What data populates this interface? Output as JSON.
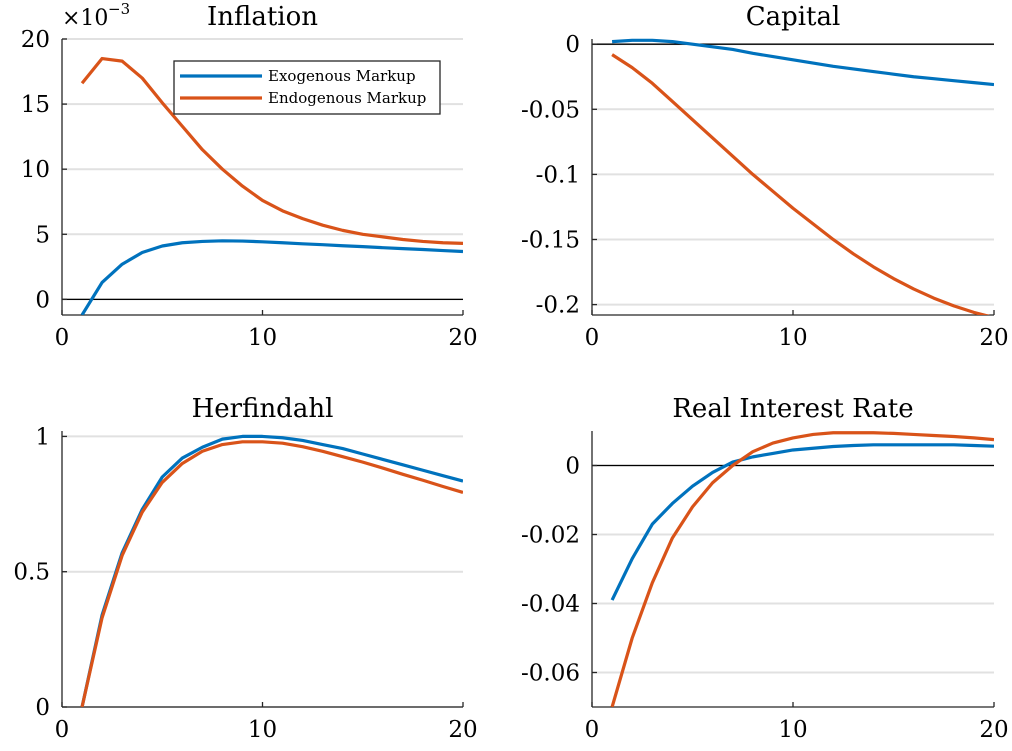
{
  "chart_data": [
    {
      "type": "line",
      "title": "Inflation",
      "xlabel": "",
      "ylabel": "",
      "exponent_label": "×10",
      "exponent_power": "−3",
      "xlim": [
        1,
        20
      ],
      "ylim": [
        -1.2,
        20
      ],
      "xticks": [
        0,
        10,
        20
      ],
      "yticks": [
        0,
        5,
        10,
        15,
        20
      ],
      "xtick_labels": [
        "0",
        "10",
        "20"
      ],
      "ytick_labels": [
        "0",
        "5",
        "10",
        "15",
        "20"
      ],
      "zero_line": true,
      "grid": "horizontal",
      "legend": "top-right",
      "x": [
        1,
        2,
        3,
        4,
        5,
        6,
        7,
        8,
        9,
        10,
        11,
        12,
        13,
        14,
        15,
        16,
        17,
        18,
        19,
        20
      ],
      "series": [
        {
          "name": "Exogenous Markup",
          "color": "#0072BD",
          "values": [
            -1.2,
            1.3,
            2.7,
            3.6,
            4.1,
            4.35,
            4.45,
            4.5,
            4.48,
            4.42,
            4.35,
            4.27,
            4.2,
            4.12,
            4.05,
            3.97,
            3.9,
            3.83,
            3.75,
            3.68
          ]
        },
        {
          "name": "Endogenous Markup",
          "color": "#D95319",
          "values": [
            16.6,
            18.5,
            18.3,
            17.0,
            15.1,
            13.3,
            11.5,
            10.0,
            8.7,
            7.6,
            6.8,
            6.2,
            5.7,
            5.3,
            5.0,
            4.8,
            4.6,
            4.45,
            4.35,
            4.3
          ]
        }
      ]
    },
    {
      "type": "line",
      "title": "Capital",
      "xlabel": "",
      "ylabel": "",
      "xlim": [
        1,
        20
      ],
      "ylim": [
        -0.208,
        0.004
      ],
      "xticks": [
        0,
        10,
        20
      ],
      "yticks": [
        0,
        -0.05,
        -0.1,
        -0.15,
        -0.2
      ],
      "xtick_labels": [
        "0",
        "10",
        "20"
      ],
      "ytick_labels": [
        "0",
        "-0.05",
        "-0.1",
        "-0.15",
        "-0.2"
      ],
      "zero_line": true,
      "grid": "horizontal",
      "x": [
        1,
        2,
        3,
        4,
        5,
        6,
        7,
        8,
        9,
        10,
        11,
        12,
        13,
        14,
        15,
        16,
        17,
        18,
        19,
        20
      ],
      "series": [
        {
          "name": "Exogenous Markup",
          "color": "#0072BD",
          "values": [
            0.002,
            0.003,
            0.003,
            0.002,
            0.0,
            -0.002,
            -0.004,
            -0.007,
            -0.0095,
            -0.012,
            -0.0145,
            -0.017,
            -0.019,
            -0.021,
            -0.023,
            -0.025,
            -0.0265,
            -0.028,
            -0.0295,
            -0.031
          ]
        },
        {
          "name": "Endogenous Markup",
          "color": "#D95319",
          "values": [
            -0.008,
            -0.018,
            -0.03,
            -0.044,
            -0.058,
            -0.072,
            -0.086,
            -0.1,
            -0.113,
            -0.126,
            -0.138,
            -0.15,
            -0.161,
            -0.171,
            -0.18,
            -0.188,
            -0.195,
            -0.201,
            -0.206,
            -0.21
          ]
        }
      ]
    },
    {
      "type": "line",
      "title": "Herfindahl",
      "xlabel": "",
      "ylabel": "",
      "xlim": [
        1,
        20
      ],
      "ylim": [
        0,
        1.02
      ],
      "xticks": [
        0,
        10,
        20
      ],
      "yticks": [
        0,
        0.5,
        1
      ],
      "xtick_labels": [
        "0",
        "10",
        "20"
      ],
      "ytick_labels": [
        "0",
        "0.5",
        "1"
      ],
      "zero_line": false,
      "grid": "horizontal",
      "x": [
        1,
        2,
        3,
        4,
        5,
        6,
        7,
        8,
        9,
        10,
        11,
        12,
        13,
        14,
        15,
        16,
        17,
        18,
        19,
        20
      ],
      "series": [
        {
          "name": "Exogenous Markup",
          "color": "#0072BD",
          "values": [
            0.0,
            0.34,
            0.57,
            0.73,
            0.85,
            0.92,
            0.96,
            0.99,
            1.0,
            1.0,
            0.995,
            0.985,
            0.97,
            0.955,
            0.935,
            0.915,
            0.895,
            0.875,
            0.855,
            0.835
          ]
        },
        {
          "name": "Endogenous Markup",
          "color": "#D95319",
          "values": [
            0.0,
            0.33,
            0.56,
            0.72,
            0.83,
            0.9,
            0.945,
            0.97,
            0.98,
            0.98,
            0.975,
            0.962,
            0.945,
            0.925,
            0.905,
            0.883,
            0.86,
            0.838,
            0.815,
            0.793
          ]
        }
      ]
    },
    {
      "type": "line",
      "title": "Real Interest Rate",
      "xlabel": "",
      "ylabel": "",
      "xlim": [
        1,
        20
      ],
      "ylim": [
        -0.07,
        0.01
      ],
      "xticks": [
        0,
        10,
        20
      ],
      "yticks": [
        0,
        -0.02,
        -0.04,
        -0.06
      ],
      "xtick_labels": [
        "0",
        "10",
        "20"
      ],
      "ytick_labels": [
        "0",
        "-0.02",
        "-0.04",
        "-0.06"
      ],
      "zero_line": true,
      "grid": "horizontal",
      "x": [
        1,
        2,
        3,
        4,
        5,
        6,
        7,
        8,
        9,
        10,
        11,
        12,
        13,
        14,
        15,
        16,
        17,
        18,
        19,
        20
      ],
      "series": [
        {
          "name": "Exogenous Markup",
          "color": "#0072BD",
          "values": [
            -0.039,
            -0.027,
            -0.017,
            -0.011,
            -0.006,
            -0.002,
            0.001,
            0.0025,
            0.0035,
            0.0045,
            0.005,
            0.0055,
            0.0058,
            0.006,
            0.006,
            0.006,
            0.006,
            0.006,
            0.0058,
            0.0056
          ]
        },
        {
          "name": "Endogenous Markup",
          "color": "#D95319",
          "values": [
            -0.07,
            -0.05,
            -0.034,
            -0.021,
            -0.012,
            -0.005,
            0.0,
            0.004,
            0.0065,
            0.008,
            0.009,
            0.0095,
            0.0095,
            0.0095,
            0.0093,
            0.009,
            0.0087,
            0.0084,
            0.008,
            0.0075
          ]
        }
      ]
    }
  ]
}
